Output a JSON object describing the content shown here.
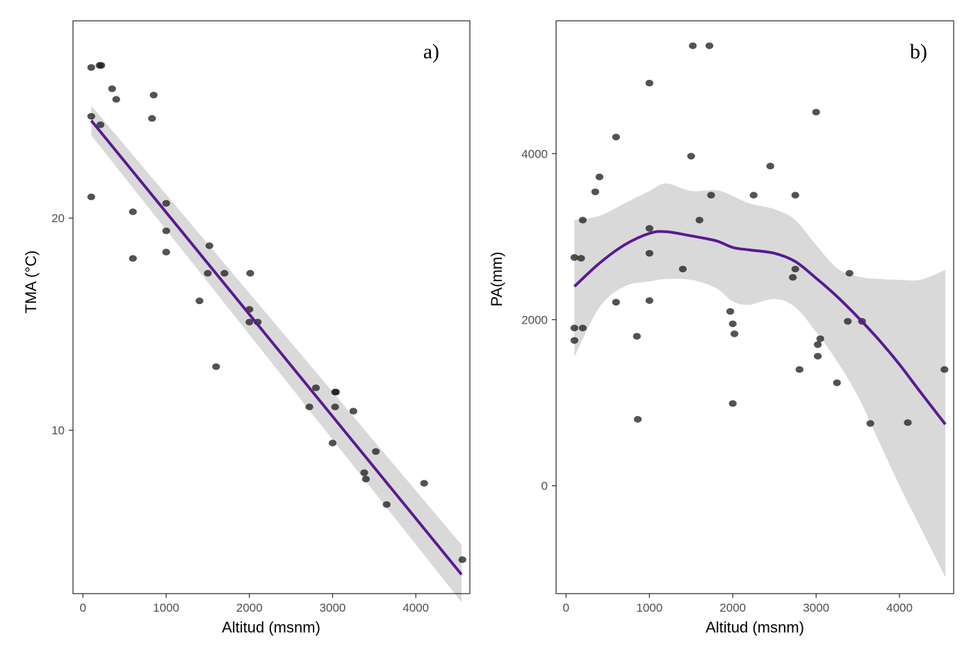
{
  "colors": {
    "fit_line": "#5b1a91",
    "confidence_band": "#d9d9d9",
    "points": "#1a1a1a"
  },
  "chart_data": [
    {
      "type": "scatter",
      "panel_label": "a)",
      "xlabel": "Altitud (msnm)",
      "ylabel": "TMA (°C)",
      "xlim": [
        -120,
        4650
      ],
      "ylim": [
        2.3,
        29.3
      ],
      "xticks": [
        0,
        1000,
        2000,
        3000,
        4000
      ],
      "yticks": [
        10,
        20
      ],
      "points": [
        [
          100,
          27.1
        ],
        [
          200,
          27.2
        ],
        [
          220,
          27.2
        ],
        [
          100,
          24.8
        ],
        [
          210,
          24.4
        ],
        [
          350,
          26.1
        ],
        [
          400,
          25.6
        ],
        [
          850,
          25.8
        ],
        [
          830,
          24.7
        ],
        [
          100,
          21.0
        ],
        [
          600,
          20.3
        ],
        [
          600,
          18.1
        ],
        [
          1000,
          20.7
        ],
        [
          1000,
          19.4
        ],
        [
          1000,
          18.4
        ],
        [
          1520,
          18.7
        ],
        [
          1500,
          17.4
        ],
        [
          1700,
          17.4
        ],
        [
          1400,
          16.1
        ],
        [
          2000,
          15.7
        ],
        [
          2010,
          17.4
        ],
        [
          2000,
          15.1
        ],
        [
          2100,
          15.1
        ],
        [
          1600,
          13.0
        ],
        [
          2800,
          12.0
        ],
        [
          3030,
          11.8
        ],
        [
          3040,
          11.8
        ],
        [
          2720,
          11.1
        ],
        [
          3030,
          11.1
        ],
        [
          3250,
          10.9
        ],
        [
          3000,
          9.4
        ],
        [
          3520,
          9.0
        ],
        [
          3380,
          8.0
        ],
        [
          3400,
          7.7
        ],
        [
          4100,
          7.5
        ],
        [
          3650,
          6.5
        ],
        [
          4560,
          3.9
        ]
      ],
      "fit": {
        "x": [
          100,
          4550
        ],
        "y": [
          24.6,
          3.2
        ],
        "band_low": [
          23.9,
          1.9
        ],
        "band_high": [
          25.3,
          4.6
        ]
      }
    },
    {
      "type": "scatter",
      "panel_label": "b)",
      "xlabel": "Altitud (msnm)",
      "ylabel": "PA(mm)",
      "xlim": [
        -120,
        4650
      ],
      "ylim": [
        -1300,
        5600
      ],
      "xticks": [
        0,
        1000,
        2000,
        3000,
        4000
      ],
      "yticks": [
        0,
        2000,
        4000
      ],
      "points": [
        [
          1520,
          5300
        ],
        [
          1720,
          5300
        ],
        [
          1000,
          4850
        ],
        [
          3000,
          4500
        ],
        [
          600,
          4200
        ],
        [
          1500,
          3970
        ],
        [
          2450,
          3850
        ],
        [
          400,
          3720
        ],
        [
          350,
          3540
        ],
        [
          1740,
          3500
        ],
        [
          2250,
          3500
        ],
        [
          2750,
          3500
        ],
        [
          200,
          3200
        ],
        [
          1600,
          3200
        ],
        [
          1000,
          3100
        ],
        [
          100,
          2750
        ],
        [
          180,
          2740
        ],
        [
          1000,
          2800
        ],
        [
          1400,
          2610
        ],
        [
          2750,
          2610
        ],
        [
          2720,
          2510
        ],
        [
          3400,
          2560
        ],
        [
          600,
          2210
        ],
        [
          1000,
          2230
        ],
        [
          1970,
          2100
        ],
        [
          2000,
          1950
        ],
        [
          3380,
          1980
        ],
        [
          3550,
          1980
        ],
        [
          100,
          1900
        ],
        [
          200,
          1900
        ],
        [
          100,
          1750
        ],
        [
          2020,
          1830
        ],
        [
          850,
          1800
        ],
        [
          3050,
          1770
        ],
        [
          3020,
          1700
        ],
        [
          3020,
          1560
        ],
        [
          2800,
          1400
        ],
        [
          4540,
          1400
        ],
        [
          3250,
          1240
        ],
        [
          2000,
          990
        ],
        [
          860,
          800
        ],
        [
          3650,
          750
        ],
        [
          4100,
          760
        ]
      ],
      "fit": {
        "x": [
          100,
          400,
          700,
          1000,
          1200,
          1500,
          1800,
          2000,
          2200,
          2500,
          2750,
          3000,
          3250,
          3500,
          3750,
          4000,
          4250,
          4550
        ],
        "y": [
          2400,
          2680,
          2900,
          3040,
          3060,
          3010,
          2950,
          2870,
          2840,
          2800,
          2700,
          2500,
          2280,
          2030,
          1760,
          1460,
          1130,
          740
        ],
        "band_low": [
          1550,
          2150,
          2400,
          2460,
          2490,
          2480,
          2380,
          2220,
          2180,
          2250,
          2150,
          1850,
          1500,
          1080,
          540,
          0,
          -500,
          -1100
        ],
        "band_high": [
          3200,
          3250,
          3400,
          3550,
          3640,
          3550,
          3560,
          3490,
          3400,
          3330,
          3200,
          2900,
          2620,
          2520,
          2490,
          2480,
          2480,
          2600
        ]
      }
    }
  ]
}
